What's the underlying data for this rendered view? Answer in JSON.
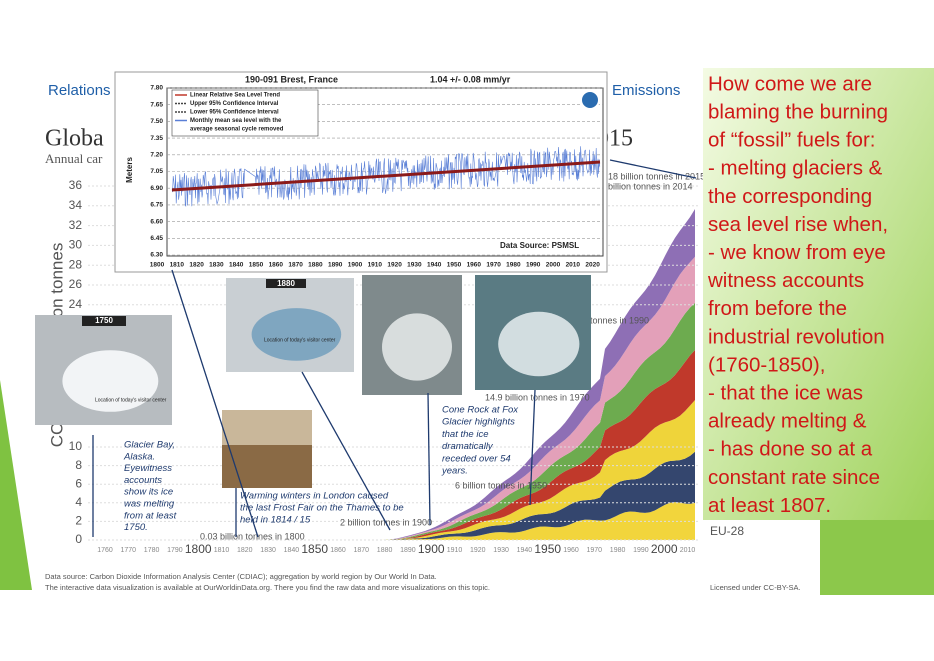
{
  "background_chart": {
    "heading_left": "Relations",
    "heading_right": "Emissions",
    "title_left": "Globa",
    "title_right": "015",
    "subtitle": "Annual car",
    "y_axis_label": "on tonnes",
    "y_axis_label_lower": "CC",
    "yticks_upper": [
      "36",
      "34",
      "32",
      "30",
      "28",
      "26",
      "24"
    ],
    "yticks_lower": [
      "10",
      "8",
      "6",
      "4",
      "2",
      "0"
    ],
    "xticks": [
      "1760",
      "1770",
      "1780",
      "1790",
      "1800",
      "1810",
      "1820",
      "1830",
      "1840",
      "1850",
      "1860",
      "1870",
      "1880",
      "1890",
      "1900",
      "1910",
      "1920",
      "1930",
      "1940",
      "1950",
      "1960",
      "1970",
      "1980",
      "1990",
      "2000",
      "2010"
    ],
    "annotations": [
      "0.03 billion tonnes in 1800",
      "2 billion tonnes in 1900",
      "6 billion tonnes in 1950",
      "14.9 billion tonnes in 1970",
      "tonnes in 1990",
      "18 billion tonnes in 2015",
      "billion tonnes in 2014"
    ],
    "region_label": "EU-28",
    "source_lines": [
      "Data source: Carbon Dioxide Information Analysis Center (CDIAC); aggregation by world region by Our World In Data.",
      "The interactive data visualization is available at OurWorldinData.org. There you find the raw data and more visualizations on this topic."
    ],
    "license": "Licensed under CC-BY-SA."
  },
  "sea_level_chart": {
    "title": "190-091 Brest, France",
    "trend": "1.04 +/- 0.08 mm/yr",
    "y_axis_label": "Meters",
    "yticks": [
      "7.80",
      "7.65",
      "7.50",
      "7.35",
      "7.20",
      "7.05",
      "6.90",
      "6.75",
      "6.60",
      "6.45",
      "6.30"
    ],
    "xticks": [
      "1800",
      "1810",
      "1820",
      "1830",
      "1840",
      "1850",
      "1860",
      "1870",
      "1880",
      "1890",
      "1900",
      "1910",
      "1920",
      "1930",
      "1940",
      "1950",
      "1960",
      "1970",
      "1980",
      "1990",
      "2000",
      "2010",
      "2020"
    ],
    "legend": [
      "Linear Relative Sea Level Trend",
      "Upper 95% Confidence Interval",
      "Lower 95% Confidence Interval",
      "Monthly mean sea level with the",
      "average seasonal cycle removed"
    ],
    "source": "Data Source: PSMSL"
  },
  "photos": {
    "labels": [
      "1750",
      "1880"
    ],
    "overlay": "Location of today's visitor center"
  },
  "captions": {
    "glacier_bay": [
      "Glacier Bay,",
      "Alaska.",
      "Eyewitness",
      "accounts",
      "show its ice",
      "was melting",
      "from at least",
      "1750."
    ],
    "london": [
      "Warming winters in London caused",
      "the last Frost Fair on the Thames to be",
      "held in 1814 / 15"
    ],
    "cone_rock": [
      "Cone Rock at Fox",
      "Glacier highlights",
      "that the ice",
      "dramatically",
      "receded over 54",
      "years."
    ]
  },
  "callout": [
    "How come we are",
    "blaming the burning",
    "of “fossil” fuels for:",
    "- melting glaciers &",
    "the corresponding",
    "sea level rise when,",
    "- we know from eye",
    "witness accounts",
    "from before the",
    "industrial revolution",
    "(1760-1850),",
    "- that the ice was",
    "already melting &",
    "- has done so at a",
    "constant rate since",
    "at least 1807."
  ]
}
